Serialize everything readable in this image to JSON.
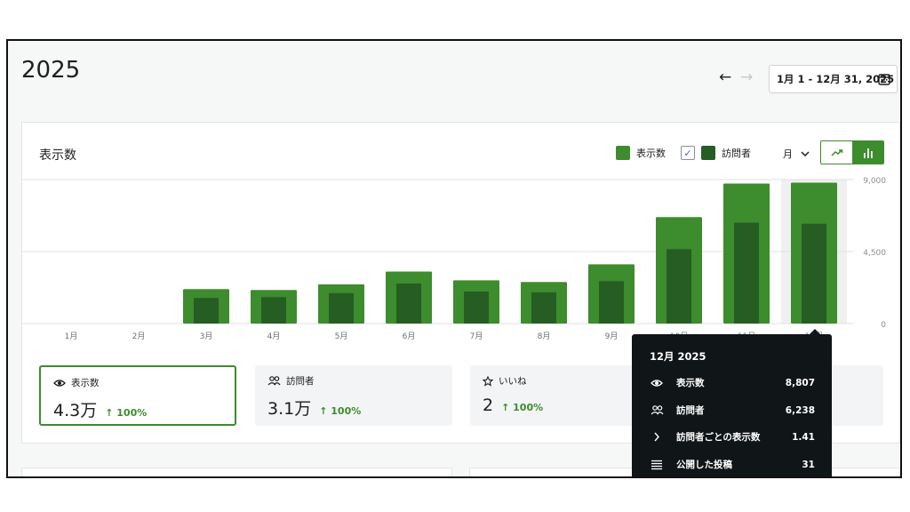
{
  "page": {
    "title": "2025"
  },
  "date_nav": {
    "prev_icon": "arrow-left-icon",
    "next_icon": "arrow-right-icon",
    "range": "1月 1 - 12月 31, 2025"
  },
  "card": {
    "title": "表示数",
    "legend": {
      "views": "表示数",
      "visitors": "訪問者"
    },
    "period": "月",
    "colors": {
      "views": "#3d8c2e",
      "visitors": "#255d22",
      "highlight": "#f0f0f0"
    }
  },
  "chart_data": {
    "type": "bar",
    "categories": [
      "1月",
      "2月",
      "3月",
      "4月",
      "5月",
      "6月",
      "7月",
      "8月",
      "9月",
      "10月",
      "11月",
      "12月"
    ],
    "series": [
      {
        "name": "表示数",
        "values": [
          0,
          0,
          2150,
          2100,
          2450,
          3250,
          2700,
          2600,
          3700,
          6650,
          8750,
          8807
        ]
      },
      {
        "name": "訪問者",
        "values": [
          0,
          0,
          1600,
          1650,
          1900,
          2500,
          2000,
          1950,
          2650,
          4650,
          6300,
          6238
        ]
      }
    ],
    "y_ticks": [
      "0",
      "4,500",
      "9,000"
    ],
    "ylim": [
      0,
      9000
    ],
    "highlighted_category": "12月",
    "grid": true
  },
  "stats": [
    {
      "label": "表示数",
      "value": "4.3万",
      "change": "↑ 100%",
      "icon": "eye-icon"
    },
    {
      "label": "訪問者",
      "value": "3.1万",
      "change": "↑ 100%",
      "icon": "people-icon"
    },
    {
      "label": "いいね",
      "value": "2",
      "change": "↑ 100%",
      "icon": "star-icon"
    }
  ],
  "tooltip": {
    "title": "12月 2025",
    "rows": [
      {
        "label": "表示数",
        "value": "8,807",
        "icon": "eye-icon"
      },
      {
        "label": "訪問者",
        "value": "6,238",
        "icon": "people-icon"
      },
      {
        "label": "訪問者ごとの表示数",
        "value": "1.41",
        "icon": "chevron-right-icon"
      },
      {
        "label": "公開した投稿",
        "value": "31",
        "icon": "posts-icon"
      }
    ]
  }
}
